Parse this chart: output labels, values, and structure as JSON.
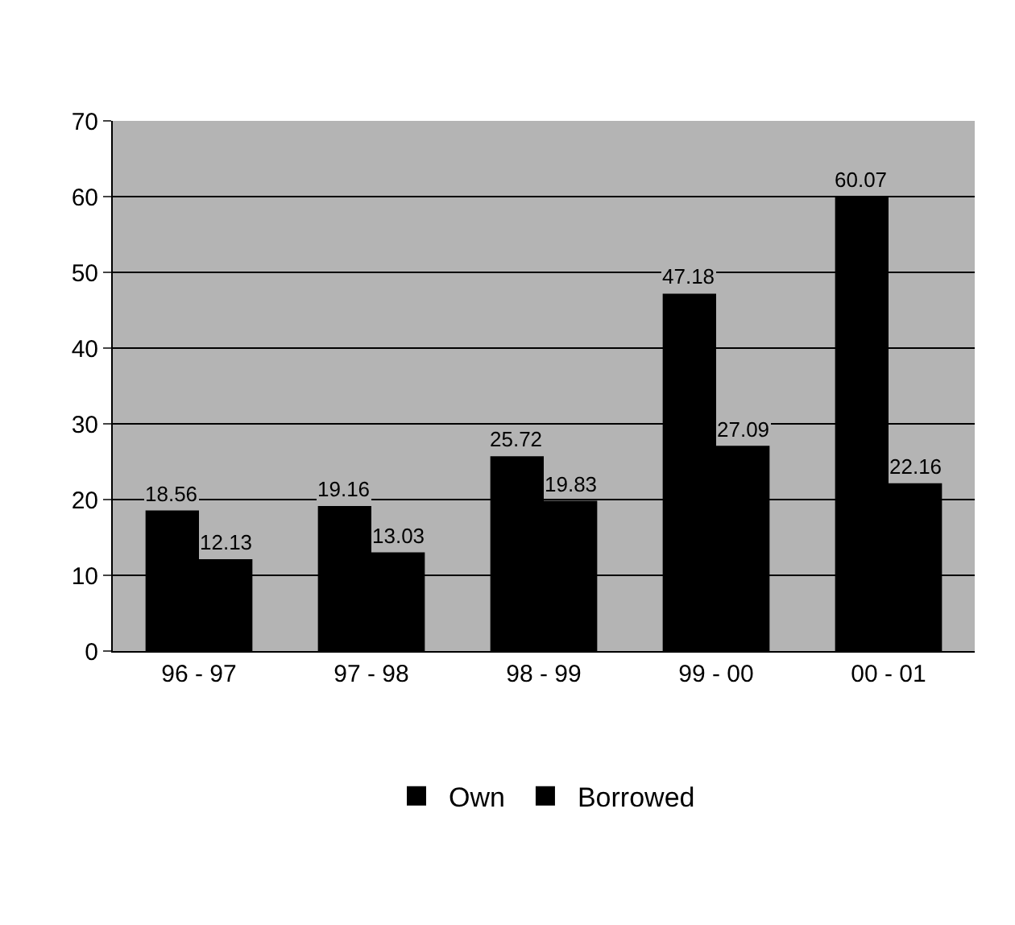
{
  "chart_data": {
    "type": "bar",
    "categories": [
      "96 - 97",
      "97 - 98",
      "98 - 99",
      "99 - 00",
      "00 - 01"
    ],
    "series": [
      {
        "name": "Own",
        "color": "#000000",
        "values": [
          18.56,
          19.16,
          25.72,
          47.18,
          60.07
        ]
      },
      {
        "name": "Borrowed",
        "color": "#000000",
        "values": [
          12.13,
          13.03,
          19.83,
          27.09,
          22.16
        ]
      }
    ],
    "ylim": [
      0,
      70
    ],
    "yticks": [
      0,
      10,
      20,
      30,
      40,
      50,
      60,
      70
    ],
    "grid": "y",
    "legend": "bottom",
    "data_labels": true
  }
}
